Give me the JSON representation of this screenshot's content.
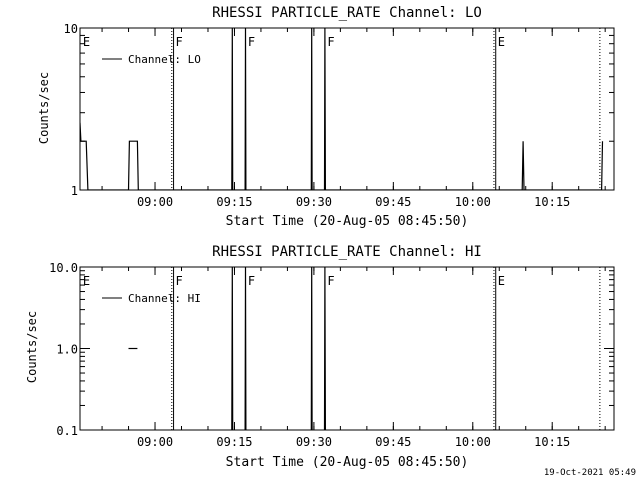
{
  "footer": {
    "timestamp": "19-Oct-2021 05:49"
  },
  "chart_data": [
    {
      "type": "line",
      "title": "RHESSI PARTICLE_RATE Channel: LO",
      "xlabel": "Start Time (20-Aug-05 08:45:50)",
      "ylabel": "Counts/sec",
      "yscale": "log",
      "xlim": [
        "08:45:50",
        "10:26:40"
      ],
      "ylim": [
        1,
        10
      ],
      "x_ticks": [
        "09:00",
        "09:15",
        "09:30",
        "09:45",
        "10:00",
        "10:15"
      ],
      "y_ticks": [
        1,
        10
      ],
      "y_tick_labels": [
        "1",
        "10"
      ],
      "legend": {
        "placement": "top-left",
        "entries": [
          "Channel: LO"
        ]
      },
      "series": [
        {
          "name": "Channel: LO",
          "points": [
            [
              "08:45:50",
              2.6
            ],
            [
              "08:46:00",
              2.0
            ],
            [
              "08:47:00",
              2.0
            ],
            [
              "08:47:20",
              1.0
            ],
            [
              "08:55:00",
              1.0
            ],
            [
              "08:55:10",
              2.0
            ],
            [
              "08:56:40",
              2.0
            ],
            [
              "08:56:50",
              1.0
            ],
            [
              "09:14:30",
              1.0
            ],
            [
              "09:14:35",
              10.0
            ],
            [
              "09:14:40",
              1.0
            ],
            [
              "09:17:00",
              1.0
            ],
            [
              "09:17:05",
              10.0
            ],
            [
              "09:17:10",
              1.0
            ],
            [
              "09:29:30",
              1.0
            ],
            [
              "09:29:35",
              10.0
            ],
            [
              "09:29:40",
              1.0
            ],
            [
              "09:32:00",
              1.0
            ],
            [
              "09:32:05",
              10.0
            ],
            [
              "09:32:10",
              1.0
            ],
            [
              "10:09:20",
              1.0
            ],
            [
              "10:09:30",
              2.0
            ],
            [
              "10:09:40",
              1.0
            ],
            [
              "10:24:20",
              1.0
            ],
            [
              "10:24:30",
              2.0
            ]
          ]
        }
      ],
      "annotations": [
        {
          "text": "E",
          "at": "08:46:00"
        },
        {
          "text": "F",
          "at": "09:03:30"
        },
        {
          "text": "F",
          "at": "09:17:10"
        },
        {
          "text": "F",
          "at": "09:32:10"
        },
        {
          "text": "E",
          "at": "10:04:20"
        }
      ],
      "markers": [
        {
          "at": "09:03:10",
          "style": "dotted"
        },
        {
          "at": "09:03:30",
          "style": "solid"
        },
        {
          "at": "10:04:00",
          "style": "dotted"
        },
        {
          "at": "10:04:20",
          "style": "solid"
        },
        {
          "at": "10:24:00",
          "style": "dotted"
        }
      ]
    },
    {
      "type": "line",
      "title": "RHESSI PARTICLE_RATE Channel: HI",
      "xlabel": "Start Time (20-Aug-05 08:45:50)",
      "ylabel": "Counts/sec",
      "yscale": "log",
      "xlim": [
        "08:45:50",
        "10:26:40"
      ],
      "ylim": [
        0.1,
        10
      ],
      "x_ticks": [
        "09:00",
        "09:15",
        "09:30",
        "09:45",
        "10:00",
        "10:15"
      ],
      "y_ticks": [
        0.1,
        1,
        10
      ],
      "y_tick_labels": [
        "0.1",
        "1.0",
        "10.0"
      ],
      "legend": {
        "placement": "top-left",
        "entries": [
          "Channel: HI"
        ]
      },
      "series": [
        {
          "name": "Channel: HI",
          "segments": [
            [
              [
                "08:55:00",
                1.0
              ],
              [
                "08:56:40",
                1.0
              ]
            ],
            [
              [
                "09:14:30",
                0.1
              ],
              [
                "09:14:35",
                10.0
              ],
              [
                "09:14:40",
                0.1
              ]
            ],
            [
              [
                "09:17:00",
                0.1
              ],
              [
                "09:17:05",
                10.0
              ],
              [
                "09:17:10",
                0.1
              ]
            ],
            [
              [
                "09:29:30",
                0.1
              ],
              [
                "09:29:35",
                10.0
              ],
              [
                "09:29:40",
                0.1
              ]
            ],
            [
              [
                "09:32:00",
                0.1
              ],
              [
                "09:32:05",
                10.0
              ],
              [
                "09:32:10",
                0.1
              ]
            ]
          ]
        }
      ],
      "annotations": [
        {
          "text": "E",
          "at": "08:46:00"
        },
        {
          "text": "F",
          "at": "09:03:30"
        },
        {
          "text": "F",
          "at": "09:17:10"
        },
        {
          "text": "F",
          "at": "09:32:10"
        },
        {
          "text": "E",
          "at": "10:04:20"
        }
      ],
      "markers": [
        {
          "at": "09:03:10",
          "style": "dotted"
        },
        {
          "at": "09:03:30",
          "style": "solid"
        },
        {
          "at": "10:04:00",
          "style": "dotted"
        },
        {
          "at": "10:04:20",
          "style": "solid"
        },
        {
          "at": "10:24:00",
          "style": "dotted"
        }
      ]
    }
  ]
}
